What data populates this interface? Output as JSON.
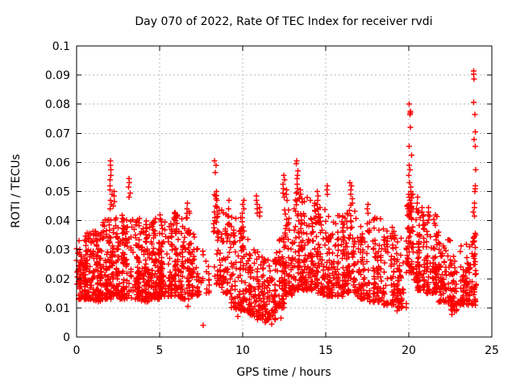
{
  "title": "Day 070 of 2022, Rate Of TEC Index for receiver rvdi",
  "axes": {
    "xlabel": "GPS time / hours",
    "ylabel": "ROTI / TECUs",
    "xtick_labels": [
      "0",
      "5",
      "10",
      "15",
      "20",
      "25"
    ],
    "ytick_labels": [
      "0",
      "0.01",
      "0.02",
      "0.03",
      "0.04",
      "0.05",
      "0.06",
      "0.07",
      "0.08",
      "0.09",
      "0.1"
    ]
  },
  "colors": {
    "marker": "#ff0000",
    "grid": "#b8b8b8",
    "axis": "#000000",
    "background": "#ffffff"
  },
  "chart_data": {
    "type": "scatter",
    "title": "Day 070 of 2022, Rate Of TEC Index for receiver rvdi",
    "xlabel": "GPS time / hours",
    "ylabel": "ROTI / TECUs",
    "xlim": [
      0,
      25
    ],
    "ylim": [
      0,
      0.1
    ],
    "xticks": [
      0,
      5,
      10,
      15,
      20,
      25
    ],
    "yticks": [
      0,
      0.01,
      0.02,
      0.03,
      0.04,
      0.05,
      0.06,
      0.07,
      0.08,
      0.09,
      0.1
    ],
    "grid": true,
    "legend": false,
    "marker": {
      "shape": "plus",
      "color": "#ff0000",
      "size": 7
    },
    "seed": 70,
    "note": "Dense ROTI scatter (~2800 pts). cloud_segments give the band envelope [t0,t1] hours with y-range [ylo,yhi] TECUs and point count n; spike_columns are vertical outlier streaks at time t with explicit y values; outlier_points are isolated low points [t,y].",
    "cloud_segments": [
      {
        "t0": 0.0,
        "t1": 0.5,
        "n": 70,
        "ylo": 0.013,
        "yhi": 0.034
      },
      {
        "t0": 0.5,
        "t1": 1.0,
        "n": 80,
        "ylo": 0.013,
        "yhi": 0.036
      },
      {
        "t0": 1.0,
        "t1": 1.5,
        "n": 80,
        "ylo": 0.012,
        "yhi": 0.038
      },
      {
        "t0": 1.5,
        "t1": 2.1,
        "n": 90,
        "ylo": 0.013,
        "yhi": 0.041
      },
      {
        "t0": 2.1,
        "t1": 2.6,
        "n": 70,
        "ylo": 0.014,
        "yhi": 0.043
      },
      {
        "t0": 2.6,
        "t1": 3.2,
        "n": 80,
        "ylo": 0.013,
        "yhi": 0.042
      },
      {
        "t0": 3.2,
        "t1": 3.8,
        "n": 80,
        "ylo": 0.013,
        "yhi": 0.041
      },
      {
        "t0": 3.8,
        "t1": 4.4,
        "n": 80,
        "ylo": 0.012,
        "yhi": 0.04
      },
      {
        "t0": 4.4,
        "t1": 5.0,
        "n": 85,
        "ylo": 0.013,
        "yhi": 0.041
      },
      {
        "t0": 5.0,
        "t1": 5.6,
        "n": 80,
        "ylo": 0.014,
        "yhi": 0.042
      },
      {
        "t0": 5.6,
        "t1": 6.2,
        "n": 80,
        "ylo": 0.014,
        "yhi": 0.043
      },
      {
        "t0": 6.2,
        "t1": 6.8,
        "n": 75,
        "ylo": 0.013,
        "yhi": 0.044
      },
      {
        "t0": 6.8,
        "t1": 7.4,
        "n": 55,
        "ylo": 0.014,
        "yhi": 0.036
      },
      {
        "t0": 7.4,
        "t1": 8.2,
        "n": 16,
        "ylo": 0.015,
        "yhi": 0.03
      },
      {
        "t0": 8.2,
        "t1": 8.7,
        "n": 45,
        "ylo": 0.018,
        "yhi": 0.05
      },
      {
        "t0": 8.7,
        "t1": 9.3,
        "n": 55,
        "ylo": 0.015,
        "yhi": 0.044
      },
      {
        "t0": 9.3,
        "t1": 9.9,
        "n": 60,
        "ylo": 0.01,
        "yhi": 0.042
      },
      {
        "t0": 9.9,
        "t1": 10.4,
        "n": 60,
        "ylo": 0.009,
        "yhi": 0.04
      },
      {
        "t0": 10.4,
        "t1": 11.2,
        "n": 90,
        "ylo": 0.007,
        "yhi": 0.03
      },
      {
        "t0": 11.2,
        "t1": 12.0,
        "n": 90,
        "ylo": 0.006,
        "yhi": 0.027
      },
      {
        "t0": 12.0,
        "t1": 12.5,
        "n": 60,
        "ylo": 0.01,
        "yhi": 0.035
      },
      {
        "t0": 12.5,
        "t1": 13.0,
        "n": 70,
        "ylo": 0.014,
        "yhi": 0.046
      },
      {
        "t0": 13.0,
        "t1": 13.6,
        "n": 75,
        "ylo": 0.016,
        "yhi": 0.05
      },
      {
        "t0": 13.6,
        "t1": 14.2,
        "n": 80,
        "ylo": 0.016,
        "yhi": 0.048
      },
      {
        "t0": 14.2,
        "t1": 14.8,
        "n": 75,
        "ylo": 0.015,
        "yhi": 0.046
      },
      {
        "t0": 14.8,
        "t1": 15.5,
        "n": 80,
        "ylo": 0.014,
        "yhi": 0.044
      },
      {
        "t0": 15.5,
        "t1": 16.2,
        "n": 75,
        "ylo": 0.014,
        "yhi": 0.042
      },
      {
        "t0": 16.2,
        "t1": 16.9,
        "n": 75,
        "ylo": 0.015,
        "yhi": 0.046
      },
      {
        "t0": 16.9,
        "t1": 17.6,
        "n": 70,
        "ylo": 0.013,
        "yhi": 0.04
      },
      {
        "t0": 17.6,
        "t1": 18.4,
        "n": 75,
        "ylo": 0.012,
        "yhi": 0.041
      },
      {
        "t0": 18.4,
        "t1": 19.2,
        "n": 70,
        "ylo": 0.011,
        "yhi": 0.038
      },
      {
        "t0": 19.2,
        "t1": 19.9,
        "n": 60,
        "ylo": 0.01,
        "yhi": 0.034
      },
      {
        "t0": 19.9,
        "t1": 20.3,
        "n": 55,
        "ylo": 0.022,
        "yhi": 0.05
      },
      {
        "t0": 20.3,
        "t1": 21.0,
        "n": 80,
        "ylo": 0.016,
        "yhi": 0.044
      },
      {
        "t0": 21.0,
        "t1": 21.8,
        "n": 80,
        "ylo": 0.015,
        "yhi": 0.042
      },
      {
        "t0": 21.8,
        "t1": 22.5,
        "n": 70,
        "ylo": 0.012,
        "yhi": 0.034
      },
      {
        "t0": 22.5,
        "t1": 23.0,
        "n": 50,
        "ylo": 0.009,
        "yhi": 0.028
      },
      {
        "t0": 23.0,
        "t1": 23.8,
        "n": 70,
        "ylo": 0.011,
        "yhi": 0.032
      },
      {
        "t0": 23.8,
        "t1": 24.05,
        "n": 30,
        "ylo": 0.011,
        "yhi": 0.036
      }
    ],
    "spike_columns": [
      {
        "t": 2.08,
        "jx": 0.07,
        "ys": [
          0.0605,
          0.059,
          0.0575,
          0.0555,
          0.054,
          0.052,
          0.0505,
          0.049,
          0.047,
          0.0455,
          0.044
        ]
      },
      {
        "t": 2.22,
        "jx": 0.06,
        "ys": [
          0.05,
          0.0485,
          0.0465,
          0.045
        ]
      },
      {
        "t": 3.18,
        "jx": 0.06,
        "ys": [
          0.0545,
          0.053,
          0.0515,
          0.0495,
          0.048
        ]
      },
      {
        "t": 5.97,
        "jx": 0.12,
        "ys": [
          0.0425,
          0.042,
          0.0415,
          0.041,
          0.0405,
          0.041,
          0.0415
        ]
      },
      {
        "t": 6.63,
        "jx": 0.06,
        "ys": [
          0.046,
          0.044,
          0.0425,
          0.041
        ]
      },
      {
        "t": 8.35,
        "jx": 0.1,
        "ys": [
          0.0605,
          0.059,
          0.0565,
          0.05,
          0.0485,
          0.047,
          0.045,
          0.043,
          0.041
        ]
      },
      {
        "t": 9.2,
        "jx": 0.1,
        "ys": [
          0.047,
          0.044,
          0.0415,
          0.039
        ]
      },
      {
        "t": 10.0,
        "jx": 0.08,
        "ys": [
          0.047,
          0.0455,
          0.044,
          0.0425,
          0.041
        ]
      },
      {
        "t": 10.82,
        "jx": 0.08,
        "ys": [
          0.0485,
          0.047,
          0.0455,
          0.044,
          0.0425
        ]
      },
      {
        "t": 11.05,
        "jx": 0.06,
        "ys": [
          0.0445,
          0.043,
          0.0415
        ]
      },
      {
        "t": 12.48,
        "jx": 0.08,
        "ys": [
          0.0555,
          0.054,
          0.0525,
          0.051,
          0.0495,
          0.048
        ]
      },
      {
        "t": 12.65,
        "jx": 0.06,
        "ys": [
          0.0505,
          0.049,
          0.047
        ]
      },
      {
        "t": 13.28,
        "jx": 0.07,
        "ys": [
          0.0605,
          0.0595,
          0.057,
          0.0555,
          0.0545,
          0.0525,
          0.051,
          0.0495
        ]
      },
      {
        "t": 13.52,
        "jx": 0.06,
        "ys": [
          0.0505,
          0.049,
          0.0475
        ]
      },
      {
        "t": 14.5,
        "jx": 0.08,
        "ys": [
          0.05,
          0.0485,
          0.047,
          0.0455
        ]
      },
      {
        "t": 15.1,
        "jx": 0.06,
        "ys": [
          0.052,
          0.0505,
          0.049
        ]
      },
      {
        "t": 16.5,
        "jx": 0.1,
        "ys": [
          0.053,
          0.052,
          0.0505,
          0.049,
          0.0475,
          0.046
        ]
      },
      {
        "t": 17.5,
        "jx": 0.06,
        "ys": [
          0.0455,
          0.044,
          0.0425
        ]
      },
      {
        "t": 20.08,
        "jx": 0.09,
        "ys": [
          0.08,
          0.0775,
          0.077,
          0.0765,
          0.072,
          0.0655,
          0.0625,
          0.059,
          0.0575,
          0.0555,
          0.053,
          0.0515,
          0.05,
          0.049,
          0.048,
          0.047,
          0.046,
          0.045,
          0.0445,
          0.044,
          0.0435,
          0.043,
          0.0425,
          0.042,
          0.0415,
          0.041
        ]
      },
      {
        "t": 20.5,
        "jx": 0.06,
        "ys": [
          0.048,
          0.046,
          0.044
        ]
      },
      {
        "t": 20.85,
        "jx": 0.06,
        "ys": [
          0.0445,
          0.043,
          0.0415,
          0.04,
          0.0385
        ]
      },
      {
        "t": 21.2,
        "jx": 0.06,
        "ys": [
          0.0445,
          0.043,
          0.042
        ]
      },
      {
        "t": 21.55,
        "jx": 0.06,
        "ys": [
          0.042,
          0.0405,
          0.039
        ]
      },
      {
        "t": 23.95,
        "jx": 0.07,
        "ys": [
          0.0914,
          0.0903,
          0.0887,
          0.0806,
          0.0765,
          0.0705,
          0.0679,
          0.0655,
          0.0575,
          0.052,
          0.051,
          0.05,
          0.046,
          0.0445,
          0.043,
          0.0415,
          0.0345,
          0.034,
          0.033,
          0.0325,
          0.0285,
          0.027,
          0.025,
          0.0155,
          0.0145,
          0.013,
          0.0125,
          0.0115
        ]
      }
    ],
    "outlier_points": [
      [
        7.62,
        0.004
      ],
      [
        6.7,
        0.0105
      ],
      [
        11.35,
        0.005
      ],
      [
        11.42,
        0.0055
      ],
      [
        10.9,
        0.006
      ],
      [
        11.1,
        0.0065
      ],
      [
        9.7,
        0.007
      ],
      [
        9.62,
        0.0095
      ],
      [
        22.6,
        0.0078
      ],
      [
        19.3,
        0.009
      ],
      [
        11.75,
        0.0045
      ],
      [
        10.55,
        0.0075
      ],
      [
        12.3,
        0.0065
      ]
    ]
  }
}
